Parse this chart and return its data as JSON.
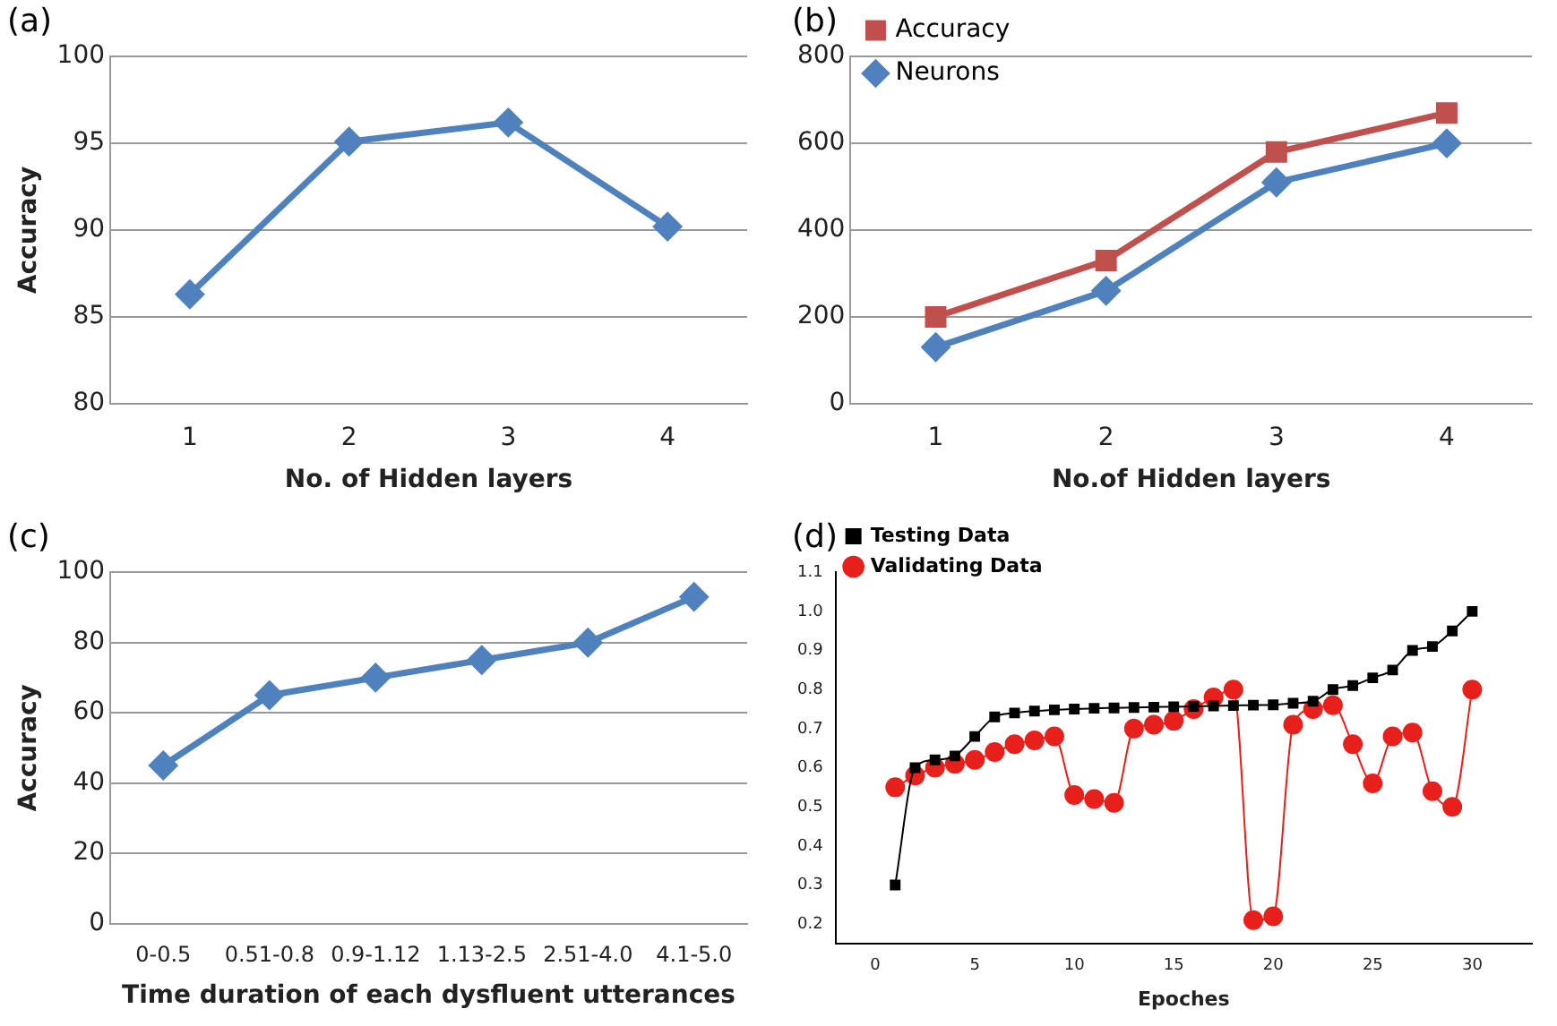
{
  "chart_data": [
    {
      "type": "line",
      "title": "(a)",
      "xlabel": "No. of Hidden layers",
      "ylabel": "Accuracy",
      "categories": [
        "1",
        "2",
        "3",
        "4"
      ],
      "series": [
        {
          "color": "#4f81bd",
          "values": [
            86.3,
            95.1,
            96.2,
            90.2
          ]
        }
      ],
      "ylim": [
        80,
        100
      ],
      "yticks": [
        80,
        85,
        90,
        95,
        100
      ],
      "grid": "y",
      "legend": false,
      "marker": "diamond"
    },
    {
      "type": "line",
      "title": "(b)",
      "xlabel": "No.of Hidden layers",
      "categories": [
        "1",
        "2",
        "3",
        "4"
      ],
      "series": [
        {
          "name": "Accuracy",
          "color": "#c0504d",
          "values": [
            200,
            330,
            580,
            670
          ],
          "marker": "square"
        },
        {
          "name": "Neurons",
          "color": "#4f81bd",
          "values": [
            130,
            260,
            510,
            600
          ],
          "marker": "diamond"
        }
      ],
      "ylim": [
        0,
        800
      ],
      "yticks": [
        0,
        200,
        400,
        600,
        800
      ],
      "grid": "y",
      "legend": "top left"
    },
    {
      "type": "line",
      "title": "(c)",
      "xlabel": "Time duration of each dysfluent utterances",
      "ylabel": "Accuracy",
      "categories": [
        "0-0.5",
        "0.51-0.8",
        "0.9-1.12",
        "1.13-2.5",
        "2.51-4.0",
        "4.1-5.0"
      ],
      "series": [
        {
          "color": "#4f81bd",
          "values": [
            45,
            65,
            70,
            75,
            80,
            93
          ]
        }
      ],
      "ylim": [
        0,
        100
      ],
      "yticks": [
        0,
        20,
        40,
        60,
        80,
        100
      ],
      "grid": "y",
      "legend": false,
      "marker": "diamond"
    },
    {
      "type": "line",
      "title": "(d)",
      "xlabel": "Epoches",
      "x": [
        1,
        2,
        3,
        4,
        5,
        6,
        7,
        8,
        9,
        10,
        11,
        12,
        13,
        14,
        15,
        16,
        17,
        18,
        19,
        20,
        21,
        22,
        23,
        24,
        25,
        26,
        27,
        28,
        29,
        30
      ],
      "series": [
        {
          "name": "Testing Data",
          "color": "#000000",
          "marker": "square",
          "values": [
            0.3,
            0.6,
            0.62,
            0.63,
            0.68,
            0.73,
            0.74,
            0.745,
            0.748,
            0.75,
            0.752,
            0.753,
            0.754,
            0.755,
            0.756,
            0.757,
            0.758,
            0.759,
            0.76,
            0.761,
            0.765,
            0.77,
            0.8,
            0.81,
            0.83,
            0.85,
            0.9,
            0.91,
            0.95,
            1.0
          ]
        },
        {
          "name": "Validating Data",
          "color": "#e8201c",
          "marker": "circle",
          "values": [
            0.55,
            0.58,
            0.6,
            0.61,
            0.62,
            0.64,
            0.66,
            0.67,
            0.68,
            0.53,
            0.52,
            0.51,
            0.7,
            0.71,
            0.72,
            0.75,
            0.78,
            0.8,
            0.21,
            0.22,
            0.71,
            0.75,
            0.76,
            0.66,
            0.56,
            0.68,
            0.69,
            0.54,
            0.5,
            0.8
          ]
        }
      ],
      "xlim": [
        -2,
        33
      ],
      "xticks": [
        0,
        5,
        10,
        15,
        20,
        25,
        30
      ],
      "ylim": [
        0.15,
        1.1
      ],
      "yticks": [
        0.2,
        0.3,
        0.4,
        0.5,
        0.6,
        0.7,
        0.8,
        0.9,
        {
          "value": 1.0,
          "label": "1.0"
        },
        1.1
      ],
      "grid": false,
      "legend": "top left"
    }
  ]
}
